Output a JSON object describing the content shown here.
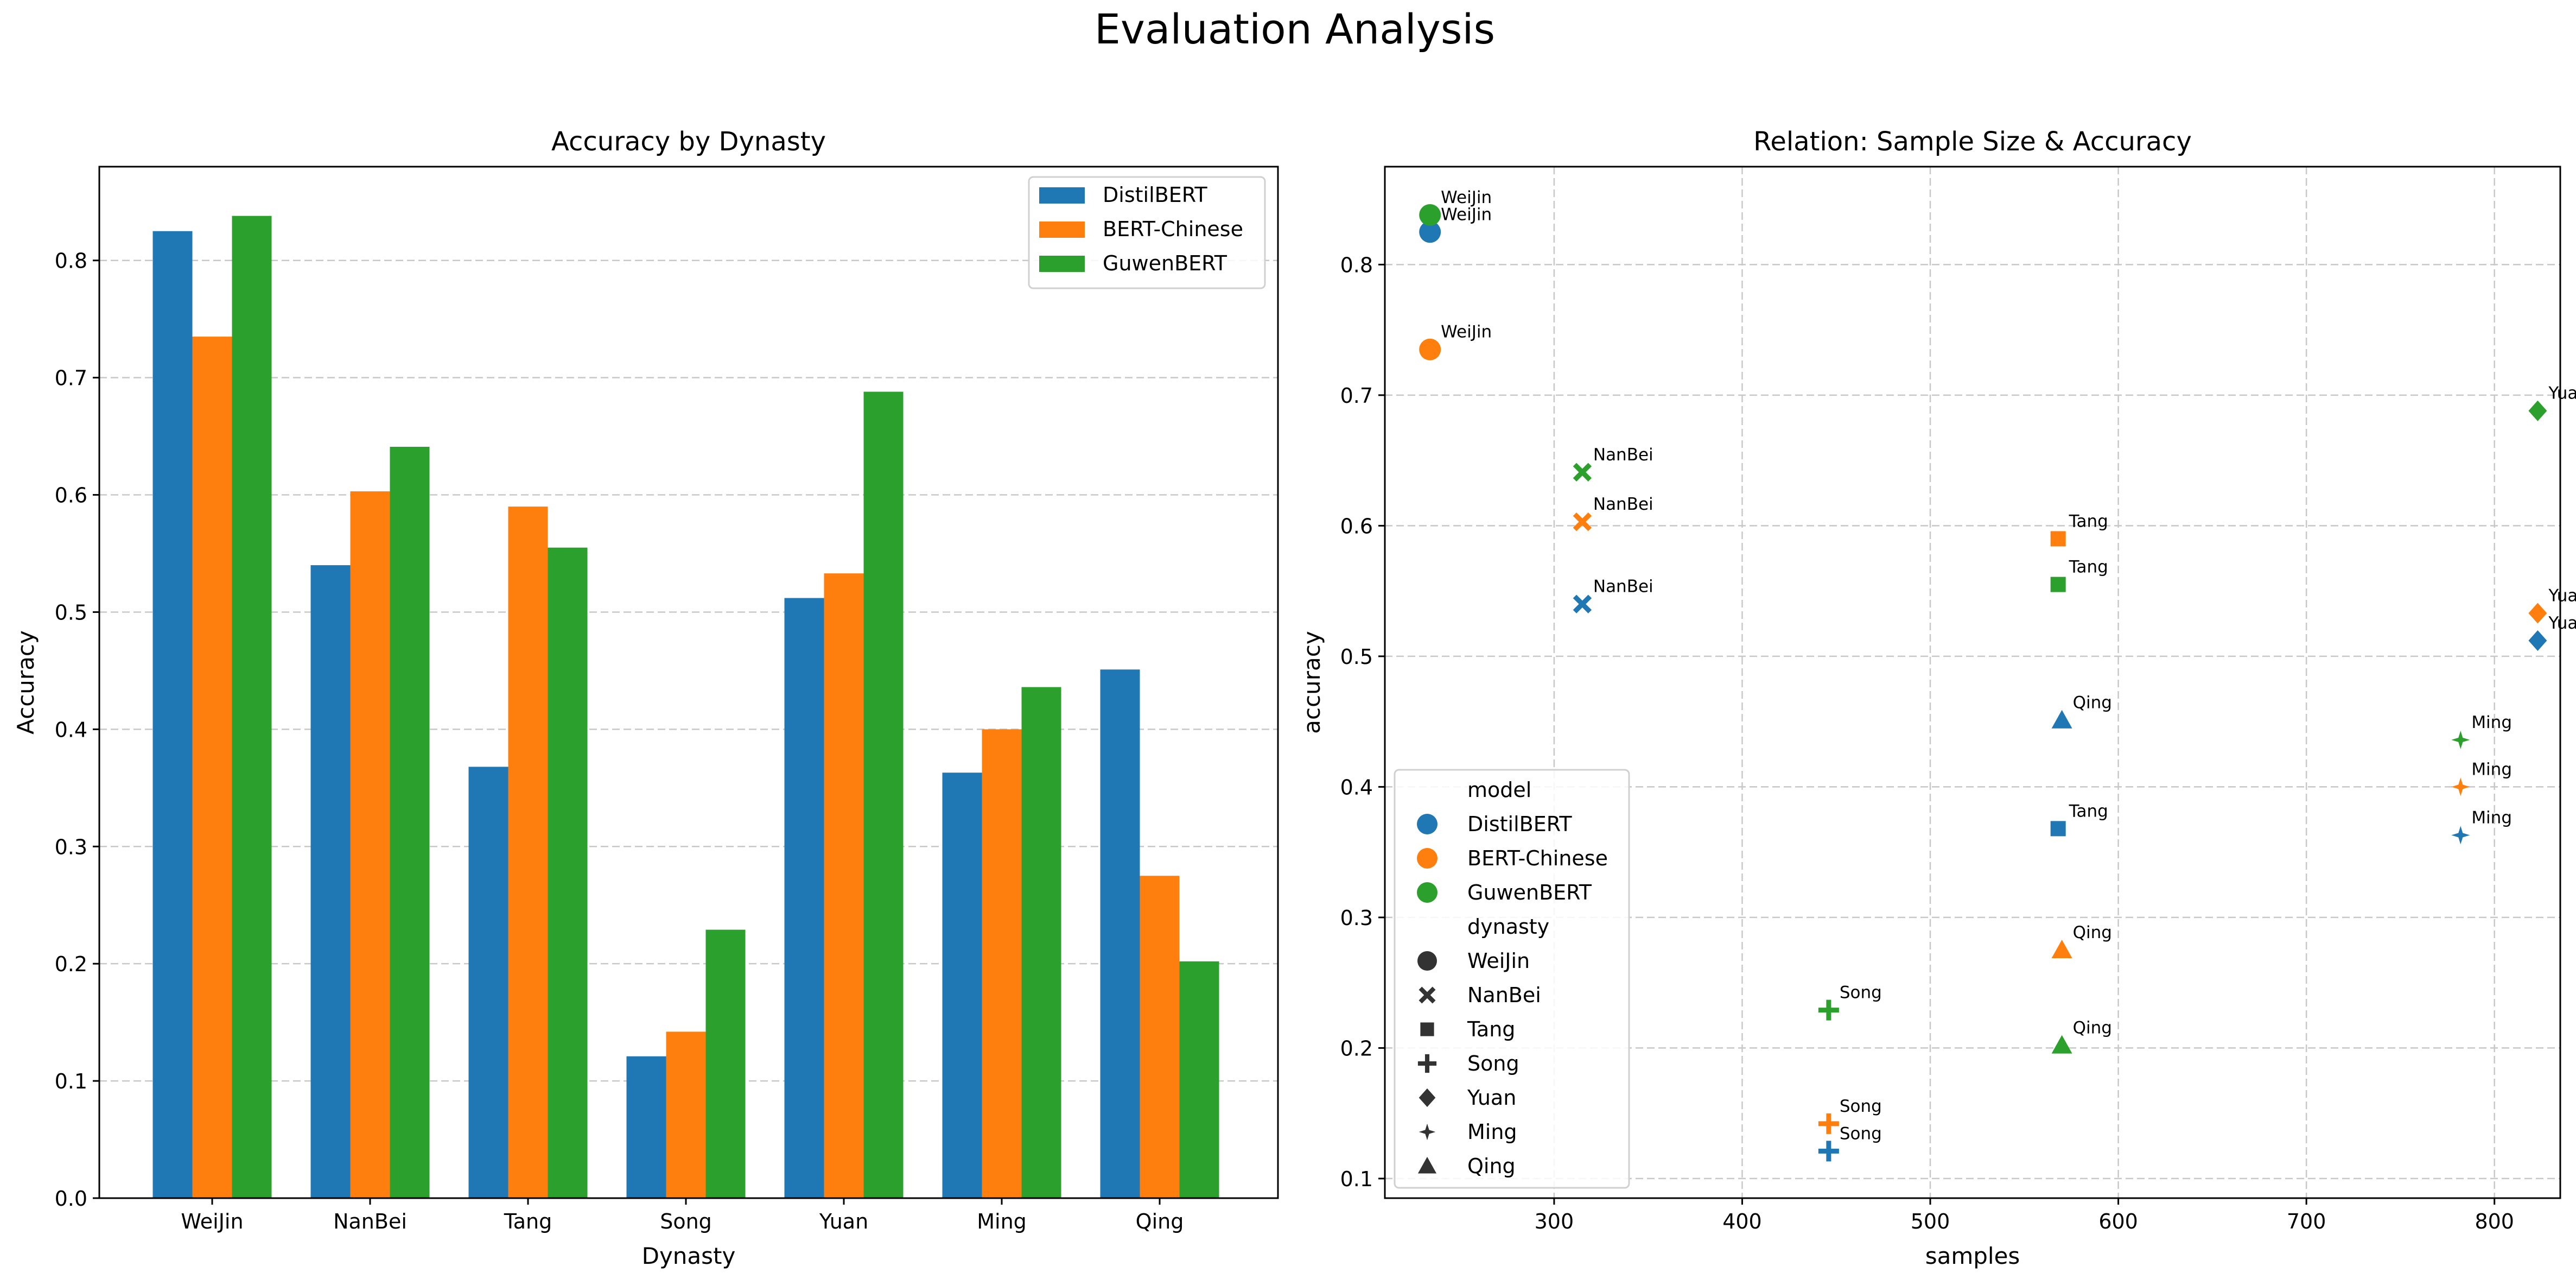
{
  "figure": {
    "title": "Evaluation Analysis"
  },
  "chart_data": [
    {
      "type": "bar",
      "title": "Accuracy by Dynasty",
      "xlabel": "Dynasty",
      "ylabel": "Accuracy",
      "ylim": [
        0,
        0.88
      ],
      "yticks": [
        "0.0",
        "0.1",
        "0.2",
        "0.3",
        "0.4",
        "0.5",
        "0.6",
        "0.7",
        "0.8"
      ],
      "grid": "y dashed",
      "legend": "top-right",
      "categories": [
        "WeiJin",
        "NanBei",
        "Tang",
        "Song",
        "Yuan",
        "Ming",
        "Qing"
      ],
      "series": [
        {
          "name": "DistilBERT",
          "color": "#1f77b4",
          "values": [
            0.825,
            0.54,
            0.368,
            0.121,
            0.512,
            0.363,
            0.451
          ]
        },
        {
          "name": "BERT-Chinese",
          "color": "#ff7f0e",
          "values": [
            0.735,
            0.603,
            0.59,
            0.142,
            0.533,
            0.4,
            0.275
          ]
        },
        {
          "name": "GuwenBERT",
          "color": "#2ca02c",
          "values": [
            0.838,
            0.641,
            0.555,
            0.229,
            0.688,
            0.436,
            0.202
          ]
        }
      ]
    },
    {
      "type": "scatter",
      "title": "Relation: Sample Size & Accuracy",
      "xlabel": "samples",
      "ylabel": "accuracy",
      "xlim": [
        210,
        835
      ],
      "ylim": [
        0.085,
        0.875
      ],
      "xticks": [
        "300",
        "400",
        "500",
        "600",
        "700",
        "800"
      ],
      "yticks": [
        "0.1",
        "0.2",
        "0.3",
        "0.4",
        "0.5",
        "0.6",
        "0.7",
        "0.8"
      ],
      "grid": "both dashed",
      "legend": "bottom-left",
      "legend_hue_title": "model",
      "legend_style_title": "dynasty",
      "models": [
        {
          "name": "DistilBERT",
          "color": "#1f77b4"
        },
        {
          "name": "BERT-Chinese",
          "color": "#ff7f0e"
        },
        {
          "name": "GuwenBERT",
          "color": "#2ca02c"
        }
      ],
      "dynasties": [
        {
          "name": "WeiJin",
          "marker": "circle"
        },
        {
          "name": "NanBei",
          "marker": "x"
        },
        {
          "name": "Tang",
          "marker": "square"
        },
        {
          "name": "Song",
          "marker": "plus"
        },
        {
          "name": "Yuan",
          "marker": "diamond"
        },
        {
          "name": "Ming",
          "marker": "star4"
        },
        {
          "name": "Qing",
          "marker": "triangle"
        }
      ],
      "points": [
        {
          "model": "DistilBERT",
          "dynasty": "WeiJin",
          "samples": 234,
          "accuracy": 0.825
        },
        {
          "model": "DistilBERT",
          "dynasty": "NanBei",
          "samples": 315,
          "accuracy": 0.54
        },
        {
          "model": "DistilBERT",
          "dynasty": "Tang",
          "samples": 568,
          "accuracy": 0.368
        },
        {
          "model": "DistilBERT",
          "dynasty": "Song",
          "samples": 446,
          "accuracy": 0.121
        },
        {
          "model": "DistilBERT",
          "dynasty": "Yuan",
          "samples": 823,
          "accuracy": 0.512
        },
        {
          "model": "DistilBERT",
          "dynasty": "Ming",
          "samples": 782,
          "accuracy": 0.363
        },
        {
          "model": "DistilBERT",
          "dynasty": "Qing",
          "samples": 570,
          "accuracy": 0.451
        },
        {
          "model": "BERT-Chinese",
          "dynasty": "WeiJin",
          "samples": 234,
          "accuracy": 0.735
        },
        {
          "model": "BERT-Chinese",
          "dynasty": "NanBei",
          "samples": 315,
          "accuracy": 0.603
        },
        {
          "model": "BERT-Chinese",
          "dynasty": "Tang",
          "samples": 568,
          "accuracy": 0.59
        },
        {
          "model": "BERT-Chinese",
          "dynasty": "Song",
          "samples": 446,
          "accuracy": 0.142
        },
        {
          "model": "BERT-Chinese",
          "dynasty": "Yuan",
          "samples": 823,
          "accuracy": 0.533
        },
        {
          "model": "BERT-Chinese",
          "dynasty": "Ming",
          "samples": 782,
          "accuracy": 0.4
        },
        {
          "model": "BERT-Chinese",
          "dynasty": "Qing",
          "samples": 570,
          "accuracy": 0.275
        },
        {
          "model": "GuwenBERT",
          "dynasty": "WeiJin",
          "samples": 234,
          "accuracy": 0.838
        },
        {
          "model": "GuwenBERT",
          "dynasty": "NanBei",
          "samples": 315,
          "accuracy": 0.641
        },
        {
          "model": "GuwenBERT",
          "dynasty": "Tang",
          "samples": 568,
          "accuracy": 0.555
        },
        {
          "model": "GuwenBERT",
          "dynasty": "Song",
          "samples": 446,
          "accuracy": 0.229
        },
        {
          "model": "GuwenBERT",
          "dynasty": "Yuan",
          "samples": 823,
          "accuracy": 0.688
        },
        {
          "model": "GuwenBERT",
          "dynasty": "Ming",
          "samples": 782,
          "accuracy": 0.436
        },
        {
          "model": "GuwenBERT",
          "dynasty": "Qing",
          "samples": 570,
          "accuracy": 0.202
        }
      ]
    }
  ]
}
